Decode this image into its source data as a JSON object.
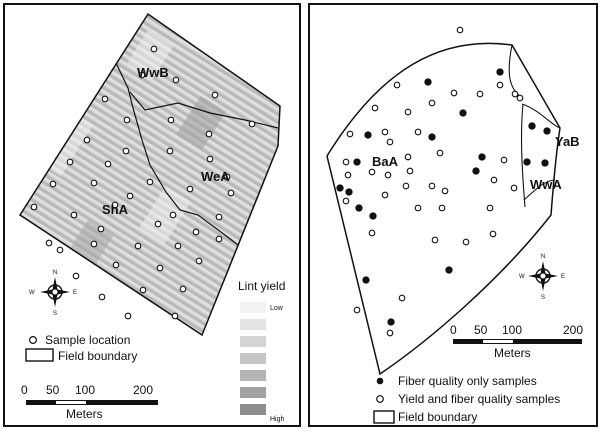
{
  "left_map": {
    "soil_units": [
      "WwB",
      "WeA",
      "ShA"
    ],
    "legend": {
      "sample_location": "Sample location",
      "field_boundary": "Field boundary"
    },
    "lint_yield": {
      "title": "Lint yield",
      "low": "Low",
      "high": "High",
      "colors": [
        "#f2f2f2",
        "#e3e3e3",
        "#d4d4d4",
        "#c5c5c5",
        "#b5b5b5",
        "#a3a3a3",
        "#8e8e8e"
      ]
    },
    "scale": {
      "ticks": [
        "0",
        "50",
        "100",
        "200"
      ],
      "unit": "Meters"
    },
    "compass": {
      "n": "N",
      "s": "S",
      "e": "E",
      "w": "W"
    },
    "samples": [
      [
        154,
        49
      ],
      [
        142,
        75
      ],
      [
        176,
        80
      ],
      [
        215,
        95
      ],
      [
        105,
        99
      ],
      [
        127,
        120
      ],
      [
        171,
        120
      ],
      [
        209,
        134
      ],
      [
        252,
        124
      ],
      [
        87,
        140
      ],
      [
        126,
        151
      ],
      [
        170,
        151
      ],
      [
        210,
        159
      ],
      [
        227,
        177
      ],
      [
        70,
        162
      ],
      [
        108,
        164
      ],
      [
        150,
        182
      ],
      [
        190,
        189
      ],
      [
        231,
        193
      ],
      [
        53,
        184
      ],
      [
        94,
        183
      ],
      [
        130,
        196
      ],
      [
        173,
        215
      ],
      [
        219,
        217
      ],
      [
        34,
        207
      ],
      [
        74,
        215
      ],
      [
        115,
        205
      ],
      [
        158,
        224
      ],
      [
        196,
        232
      ],
      [
        49,
        243
      ],
      [
        94,
        244
      ],
      [
        138,
        246
      ],
      [
        178,
        246
      ],
      [
        219,
        239
      ],
      [
        76,
        276
      ],
      [
        116,
        265
      ],
      [
        160,
        268
      ],
      [
        199,
        261
      ],
      [
        102,
        297
      ],
      [
        143,
        290
      ],
      [
        183,
        289
      ],
      [
        128,
        316
      ],
      [
        175,
        316
      ],
      [
        60,
        250
      ],
      [
        101,
        229
      ]
    ]
  },
  "right_map": {
    "soil_units": [
      "BaA",
      "YaB",
      "WwA"
    ],
    "legend": {
      "fiber_only": "Fiber quality only samples",
      "yield_fiber": "Yield and fiber quality samples",
      "field_boundary": "Field boundary"
    },
    "scale": {
      "ticks": [
        "0",
        "50",
        "100",
        "200"
      ],
      "unit": "Meters"
    },
    "compass": {
      "n": "N",
      "s": "S",
      "e": "E",
      "w": "W"
    },
    "filled_samples": [
      [
        428,
        82
      ],
      [
        500,
        72
      ],
      [
        463,
        113
      ],
      [
        368,
        135
      ],
      [
        432,
        137
      ],
      [
        532,
        126
      ],
      [
        482,
        157
      ],
      [
        547,
        131
      ],
      [
        357,
        162
      ],
      [
        527,
        162
      ],
      [
        545,
        163
      ],
      [
        340,
        188
      ],
      [
        349,
        192
      ],
      [
        359,
        208
      ],
      [
        373,
        216
      ],
      [
        476,
        171
      ],
      [
        449,
        270
      ],
      [
        366,
        280
      ],
      [
        391,
        322
      ]
    ],
    "open_samples": [
      [
        460,
        30
      ],
      [
        397,
        85
      ],
      [
        500,
        85
      ],
      [
        454,
        93
      ],
      [
        480,
        94
      ],
      [
        515,
        94
      ],
      [
        432,
        103
      ],
      [
        375,
        108
      ],
      [
        408,
        112
      ],
      [
        350,
        134
      ],
      [
        385,
        132
      ],
      [
        418,
        132
      ],
      [
        390,
        142
      ],
      [
        440,
        153
      ],
      [
        408,
        157
      ],
      [
        346,
        162
      ],
      [
        504,
        160
      ],
      [
        372,
        172
      ],
      [
        348,
        175
      ],
      [
        388,
        175
      ],
      [
        410,
        171
      ],
      [
        432,
        186
      ],
      [
        494,
        180
      ],
      [
        406,
        186
      ],
      [
        385,
        195
      ],
      [
        445,
        191
      ],
      [
        346,
        201
      ],
      [
        418,
        208
      ],
      [
        442,
        208
      ],
      [
        490,
        208
      ],
      [
        372,
        233
      ],
      [
        435,
        240
      ],
      [
        466,
        242
      ],
      [
        493,
        234
      ],
      [
        402,
        298
      ],
      [
        357,
        310
      ],
      [
        390,
        333
      ],
      [
        514,
        188
      ],
      [
        520,
        98
      ]
    ]
  }
}
